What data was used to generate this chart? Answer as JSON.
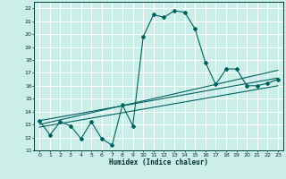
{
  "xlabel": "Humidex (Indice chaleur)",
  "ylabel": "",
  "bg_color": "#cceee8",
  "grid_color": "#ffffff",
  "line_color": "#006060",
  "xlim": [
    -0.5,
    23.5
  ],
  "ylim": [
    11,
    22.5
  ],
  "yticks": [
    11,
    12,
    13,
    14,
    15,
    16,
    17,
    18,
    19,
    20,
    21,
    22
  ],
  "xticks": [
    0,
    1,
    2,
    3,
    4,
    5,
    6,
    7,
    8,
    9,
    10,
    11,
    12,
    13,
    14,
    15,
    16,
    17,
    18,
    19,
    20,
    21,
    22,
    23
  ],
  "main_x": [
    0,
    1,
    2,
    3,
    4,
    5,
    6,
    7,
    8,
    9,
    10,
    11,
    12,
    13,
    14,
    15,
    16,
    17,
    18,
    19,
    20,
    21,
    22,
    23
  ],
  "main_y": [
    13.3,
    12.2,
    13.2,
    12.9,
    11.9,
    13.2,
    11.9,
    11.4,
    14.5,
    12.9,
    19.8,
    21.5,
    21.3,
    21.8,
    21.7,
    20.4,
    17.8,
    16.1,
    17.3,
    17.3,
    16.0,
    16.0,
    16.2,
    16.5
  ],
  "trend1_x": [
    0,
    23
  ],
  "trend1_y": [
    13.0,
    17.2
  ],
  "trend2_x": [
    0,
    23
  ],
  "trend2_y": [
    13.3,
    16.6
  ],
  "trend3_x": [
    0,
    23
  ],
  "trend3_y": [
    12.8,
    16.0
  ]
}
